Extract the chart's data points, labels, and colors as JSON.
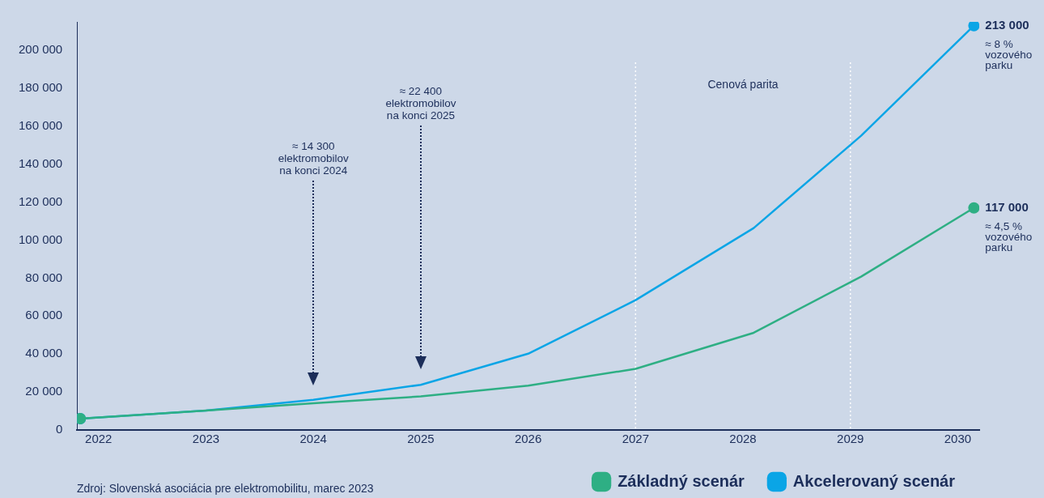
{
  "chart_data": {
    "type": "line",
    "x": [
      2021.83,
      2023,
      2024,
      2025,
      2026,
      2027,
      2028.1,
      2029.1,
      2030.15
    ],
    "series": [
      {
        "name": "Základný scenár",
        "color": "#2eaf84",
        "values": [
          6000,
          10200,
          14100,
          17700,
          23400,
          32200,
          51200,
          80800,
          117000
        ],
        "value_labels": [
          null,
          null,
          null,
          null,
          null,
          null,
          null,
          null,
          "117 000"
        ]
      },
      {
        "name": "Akcelerovaný scenár",
        "color": "#0aa5e6",
        "values": [
          6000,
          10200,
          15900,
          23800,
          40200,
          68400,
          106400,
          155000,
          213000
        ],
        "value_labels": [
          null,
          null,
          null,
          null,
          null,
          null,
          null,
          null,
          "213 000"
        ]
      }
    ],
    "xlim": [
      2021.8,
      2030.2
    ],
    "xticks": [
      2022,
      2023,
      2024,
      2025,
      2026,
      2027,
      2028,
      2029,
      2030
    ],
    "ylim": [
      0,
      215000
    ],
    "yticks": [
      {
        "value": 0,
        "label": "0"
      },
      {
        "value": 20000,
        "label": "20 000"
      },
      {
        "value": 40000,
        "label": "40 000"
      },
      {
        "value": 60000,
        "label": "60 000"
      },
      {
        "value": 80000,
        "label": "80 000"
      },
      {
        "value": 100000,
        "label": "100 000"
      },
      {
        "value": 120000,
        "label": "120 000"
      },
      {
        "value": 140000,
        "label": "140 000"
      },
      {
        "value": 160000,
        "label": "160 000"
      },
      {
        "value": 180000,
        "label": "180 000"
      },
      {
        "value": 200000,
        "label": "200 000"
      }
    ],
    "ref_lines": [
      {
        "axis": "x",
        "value": 2027,
        "label": null,
        "color": "#ffffff",
        "line_style": "dotted"
      },
      {
        "axis": "x",
        "value": 2029,
        "label": null,
        "color": "#ffffff",
        "line_style": "dotted"
      }
    ],
    "annotations": [
      "≈ 14 300\nelektromobilov\nna konci 2024",
      "≈ 22 400\nelektromobilov\nna konci 2025",
      "Cenová parita",
      {
        "text": "≈ 8 %\nvozového\nparku",
        "x": 2030.15,
        "y": 213000
      },
      {
        "text": "≈ 4,5 %\nvozového\nparku",
        "x": 2030.15,
        "y": 117000
      },
      "Zdroj: Slovenská asociácia pre elektromobilitu, marec 2023"
    ],
    "grid": false,
    "legend": "bottom right",
    "line_style": "solid"
  }
}
